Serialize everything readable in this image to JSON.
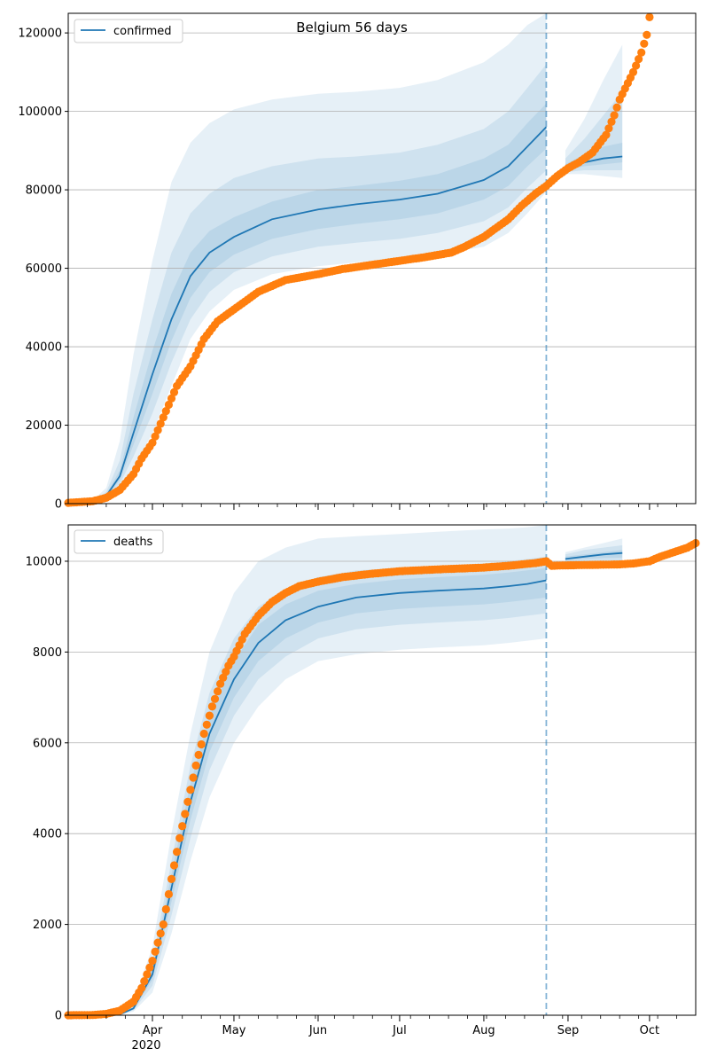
{
  "title": "Belgium 56 days",
  "colors": {
    "forecast": "#1f77b4",
    "observed": "#ff7f0e",
    "grid": "#b0b0b0",
    "axis": "#000000"
  },
  "x_axis": {
    "tick_labels": [
      "Apr",
      "May",
      "Jun",
      "Jul",
      "Aug",
      "Sep",
      "Oct"
    ],
    "year_label": "2020",
    "range": [
      "2020-03-01",
      "2020-10-18"
    ]
  },
  "cutoff_date": "2020-08-24",
  "chart_data": [
    {
      "type": "line",
      "legend": "confirmed",
      "legend_position": "top-left",
      "grid": "horizontal",
      "ylim": [
        0,
        125000
      ],
      "yticks": [
        0,
        20000,
        40000,
        60000,
        80000,
        100000,
        120000
      ],
      "ytick_labels": [
        "0",
        "20000",
        "40000",
        "60000",
        "80000",
        "100000",
        "120000"
      ],
      "forecast": {
        "name": "confirmed",
        "x": [
          "2020-03-01",
          "2020-03-10",
          "2020-03-15",
          "2020-03-20",
          "2020-03-25",
          "2020-04-01",
          "2020-04-08",
          "2020-04-15",
          "2020-04-22",
          "2020-05-01",
          "2020-05-15",
          "2020-06-01",
          "2020-06-15",
          "2020-07-01",
          "2020-07-15",
          "2020-08-01",
          "2020-08-10",
          "2020-08-17",
          "2020-08-24",
          "2020-08-31",
          "2020-09-07",
          "2020-09-14",
          "2020-09-21"
        ],
        "y": [
          0,
          500,
          2000,
          7000,
          18000,
          33000,
          47000,
          58000,
          64000,
          68000,
          72500,
          75000,
          76300,
          77500,
          79000,
          82500,
          86000,
          91000,
          96000,
          85500,
          87000,
          88000,
          88500
        ],
        "bands": [
          {
            "lower": [
              0,
              300,
              1200,
              3500,
              9000,
              18000,
              30000,
              42000,
              49000,
              54500,
              58500,
              60500,
              61500,
              62500,
              63500,
              65500,
              69000,
              74000,
              79500,
              84000,
              84000,
              83500,
              83000
            ],
            "upper": [
              0,
              800,
              4000,
              16000,
              38000,
              62000,
              82000,
              92000,
              97000,
              100500,
              103000,
              104500,
              105000,
              106000,
              108000,
              112500,
              117000,
              122000,
              126000,
              90000,
              98000,
              108000,
              117000
            ]
          },
          {
            "lower": [
              0,
              400,
              1500,
              5000,
              12000,
              23000,
              36000,
              47000,
              54000,
              59000,
              63000,
              65500,
              66500,
              67500,
              69000,
              72000,
              75500,
              80500,
              85000,
              84500,
              85000,
              85000,
              85000
            ],
            "upper": [
              0,
              700,
              3000,
              11000,
              28000,
              47000,
              64000,
              74000,
              79000,
              83000,
              86000,
              88000,
              88500,
              89500,
              91500,
              95500,
              100000,
              106000,
              112000,
              88000,
              93000,
              99000,
              105000
            ]
          },
          {
            "lower": [
              0,
              450,
              1800,
              6000,
              15000,
              28000,
              41500,
              52500,
              59000,
              63500,
              67500,
              70000,
              71300,
              72500,
              74000,
              77500,
              81000,
              86000,
              90500,
              85000,
              86000,
              86500,
              87000
            ],
            "upper": [
              0,
              550,
              2400,
              8500,
              22000,
              39000,
              53500,
              64000,
              69500,
              73000,
              77000,
              80000,
              81000,
              82300,
              84000,
              88000,
              91500,
              97000,
              102000,
              86500,
              89000,
              91000,
              92000
            ]
          }
        ]
      },
      "observed": {
        "x": [
          "2020-03-01",
          "2020-03-10",
          "2020-03-15",
          "2020-03-20",
          "2020-03-25",
          "2020-03-28",
          "2020-04-01",
          "2020-04-05",
          "2020-04-10",
          "2020-04-15",
          "2020-04-20",
          "2020-04-25",
          "2020-05-01",
          "2020-05-05",
          "2020-05-10",
          "2020-05-15",
          "2020-05-20",
          "2020-06-01",
          "2020-06-10",
          "2020-06-20",
          "2020-07-01",
          "2020-07-10",
          "2020-07-20",
          "2020-07-25",
          "2020-08-01",
          "2020-08-05",
          "2020-08-10",
          "2020-08-15",
          "2020-08-20",
          "2020-08-24",
          "2020-08-28",
          "2020-09-01",
          "2020-09-05",
          "2020-09-10",
          "2020-09-15",
          "2020-09-18",
          "2020-09-20",
          "2020-09-25",
          "2020-09-28",
          "2020-09-30",
          "2020-10-01"
        ],
        "y": [
          200,
          600,
          1500,
          3500,
          7500,
          11500,
          15500,
          22000,
          30000,
          35000,
          42000,
          46500,
          49500,
          51500,
          54000,
          55500,
          57000,
          58500,
          59800,
          60800,
          61900,
          62800,
          64000,
          65500,
          68000,
          70000,
          72500,
          76000,
          79000,
          81000,
          83500,
          85500,
          87000,
          89500,
          94000,
          99000,
          103000,
          110000,
          115000,
          119500,
          124000
        ]
      }
    },
    {
      "type": "line",
      "legend": "deaths",
      "legend_position": "top-left",
      "grid": "horizontal",
      "ylim": [
        0,
        10800
      ],
      "yticks": [
        0,
        2000,
        4000,
        6000,
        8000,
        10000
      ],
      "ytick_labels": [
        "0",
        "2000",
        "4000",
        "6000",
        "8000",
        "10000"
      ],
      "forecast": {
        "name": "deaths",
        "x": [
          "2020-03-01",
          "2020-03-20",
          "2020-03-25",
          "2020-04-01",
          "2020-04-08",
          "2020-04-15",
          "2020-04-22",
          "2020-05-01",
          "2020-05-10",
          "2020-05-20",
          "2020-06-01",
          "2020-06-15",
          "2020-07-01",
          "2020-07-15",
          "2020-08-01",
          "2020-08-10",
          "2020-08-17",
          "2020-08-24",
          "2020-08-31",
          "2020-09-07",
          "2020-09-14",
          "2020-09-21"
        ],
        "y": [
          0,
          20,
          150,
          900,
          2800,
          4700,
          6200,
          7400,
          8200,
          8700,
          9000,
          9200,
          9300,
          9350,
          9400,
          9450,
          9500,
          9580,
          10050,
          10100,
          10150,
          10180
        ],
        "bands": [
          {
            "lower": [
              0,
              5,
              80,
              500,
              1800,
              3400,
              4800,
              6000,
              6800,
              7400,
              7800,
              7950,
              8050,
              8100,
              8150,
              8200,
              8250,
              8300,
              9950,
              9950,
              9950,
              9950
            ],
            "upper": [
              0,
              40,
              300,
              1500,
              4000,
              6200,
              8000,
              9300,
              10000,
              10300,
              10500,
              10550,
              10600,
              10650,
              10700,
              10720,
              10750,
              10800,
              10200,
              10300,
              10400,
              10500
            ]
          },
          {
            "lower": [
              0,
              10,
              110,
              650,
              2200,
              3900,
              5400,
              6600,
              7400,
              7900,
              8300,
              8500,
              8600,
              8650,
              8700,
              8750,
              8800,
              8850,
              10000,
              10000,
              10000,
              10000
            ],
            "upper": [
              0,
              30,
              230,
              1200,
              3400,
              5500,
              7100,
              8300,
              9000,
              9400,
              9650,
              9800,
              9850,
              9900,
              9950,
              10000,
              10050,
              10100,
              10150,
              10250,
              10300,
              10350
            ]
          },
          {
            "lower": [
              0,
              15,
              130,
              780,
              2500,
              4300,
              5800,
              7000,
              7800,
              8300,
              8650,
              8850,
              8950,
              9000,
              9050,
              9100,
              9150,
              9200,
              10020,
              10050,
              10070,
              10080
            ],
            "upper": [
              0,
              25,
              180,
              1050,
              3100,
              5100,
              6600,
              7800,
              8600,
              9050,
              9350,
              9500,
              9600,
              9650,
              9700,
              9750,
              9800,
              9850,
              10100,
              10150,
              10200,
              10250
            ]
          }
        ]
      },
      "observed": {
        "x": [
          "2020-03-01",
          "2020-03-10",
          "2020-03-15",
          "2020-03-20",
          "2020-03-25",
          "2020-03-28",
          "2020-04-01",
          "2020-04-05",
          "2020-04-08",
          "2020-04-11",
          "2020-04-14",
          "2020-04-17",
          "2020-04-20",
          "2020-04-23",
          "2020-04-26",
          "2020-04-29",
          "2020-05-01",
          "2020-05-05",
          "2020-05-10",
          "2020-05-15",
          "2020-05-20",
          "2020-05-25",
          "2020-06-01",
          "2020-06-10",
          "2020-06-20",
          "2020-07-01",
          "2020-07-15",
          "2020-08-01",
          "2020-08-10",
          "2020-08-20",
          "2020-08-24",
          "2020-08-26",
          "2020-09-01",
          "2020-09-10",
          "2020-09-20",
          "2020-09-25",
          "2020-10-01",
          "2020-10-05",
          "2020-10-10",
          "2020-10-15",
          "2020-10-18"
        ],
        "y": [
          0,
          5,
          30,
          100,
          300,
          600,
          1200,
          2000,
          3000,
          3900,
          4700,
          5500,
          6200,
          6800,
          7300,
          7700,
          7900,
          8400,
          8800,
          9100,
          9300,
          9450,
          9550,
          9650,
          9720,
          9780,
          9820,
          9860,
          9900,
          9960,
          10000,
          9900,
          9910,
          9920,
          9930,
          9950,
          10000,
          10100,
          10200,
          10300,
          10400
        ]
      }
    }
  ]
}
